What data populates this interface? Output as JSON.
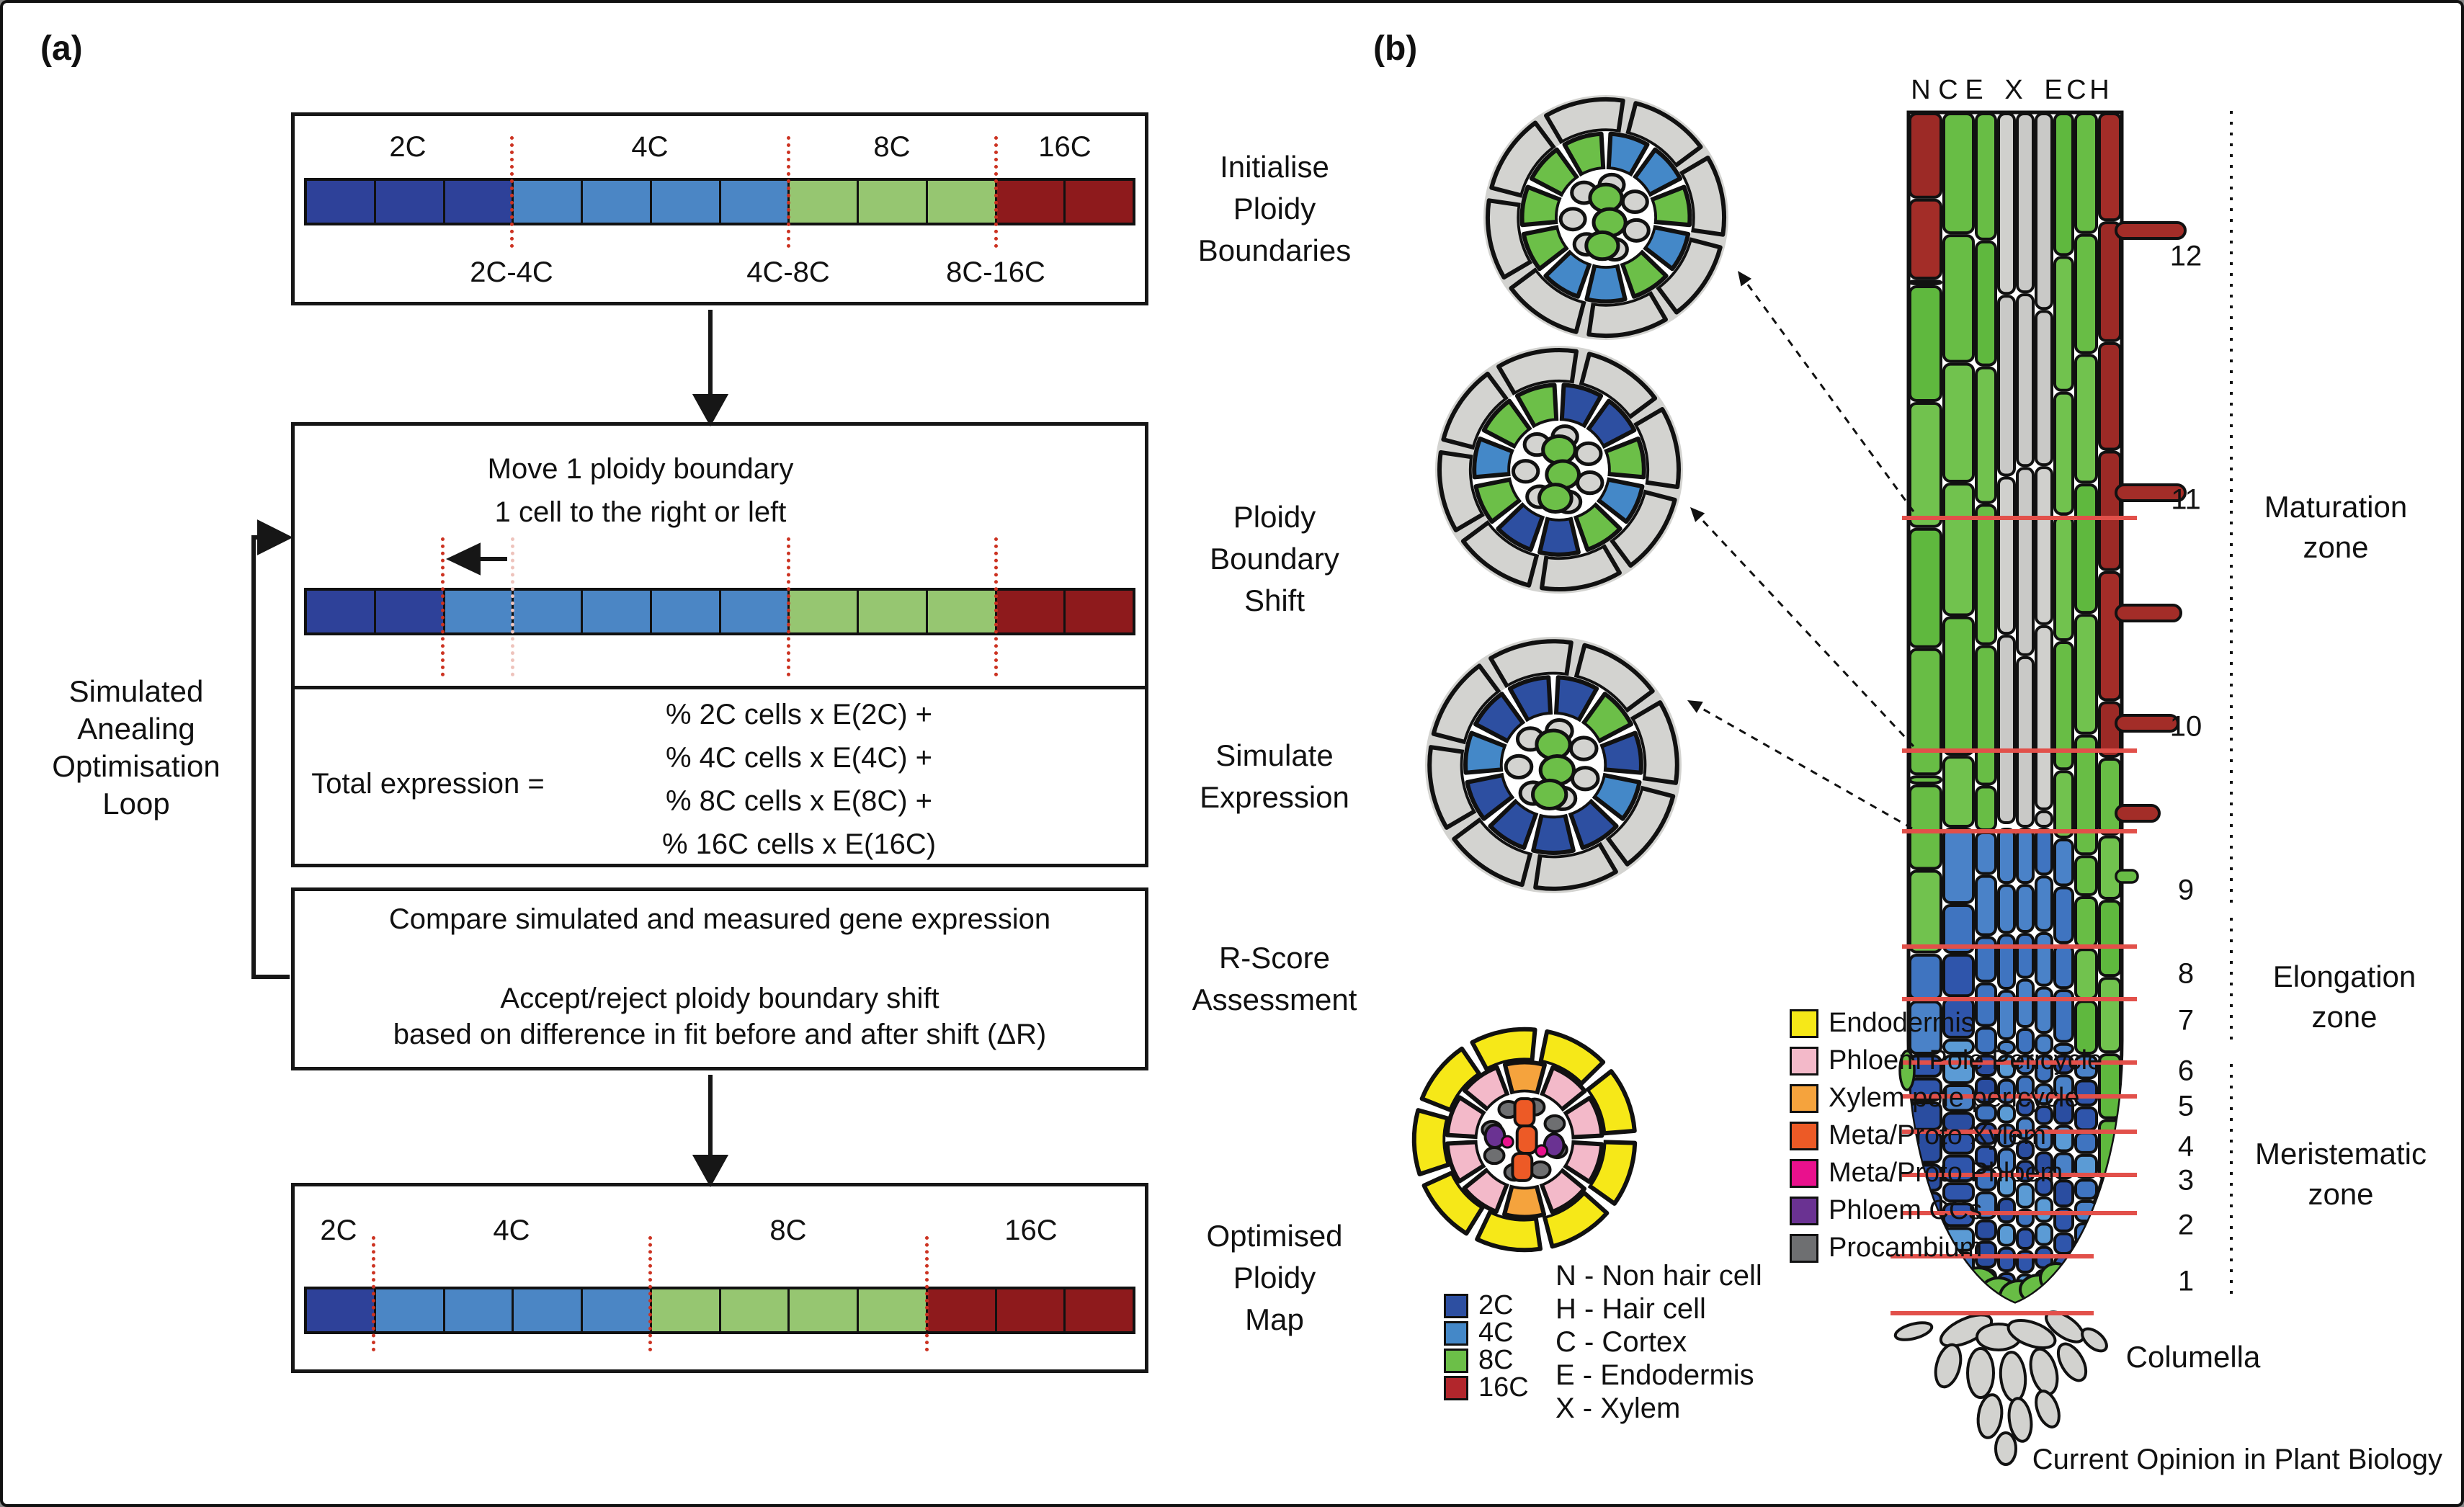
{
  "panel_a": {
    "label": "(a)",
    "colors": {
      "2C": "#2e4199",
      "4C": "#4b86c5",
      "8C": "#96c671",
      "16C": "#8e1a1c",
      "boundary": "#cc3322",
      "boundary_faded": "#eec3bc"
    },
    "boxes": {
      "initialise": {
        "side_label_lines": [
          "Initialise",
          "Ploidy",
          "Boundaries"
        ],
        "segment_labels": [
          "2C",
          "4C",
          "8C",
          "16C"
        ],
        "boundary_labels": [
          "2C-4C",
          "4C-8C",
          "8C-16C"
        ],
        "cells": [
          "2C",
          "2C",
          "2C",
          "4C",
          "4C",
          "4C",
          "4C",
          "8C",
          "8C",
          "8C",
          "16C",
          "16C"
        ]
      },
      "shift": {
        "side_label_lines": [
          "Ploidy",
          "Boundary",
          "Shift"
        ],
        "text_line1": "Move 1 ploidy boundary",
        "text_line2": "1 cell to the right or left",
        "cells": [
          "2C",
          "2C",
          "4C",
          "4C",
          "4C",
          "4C",
          "4C",
          "8C",
          "8C",
          "8C",
          "16C",
          "16C"
        ]
      },
      "simulate": {
        "side_label_lines": [
          "Simulate",
          "Expression"
        ],
        "lhs": "Total expression =",
        "rhs_lines": [
          "% 2C cells x E(2C) +",
          "% 4C cells x E(4C) +",
          "% 8C cells x E(8C) +",
          "% 16C cells x E(16C)"
        ]
      },
      "rscore": {
        "side_label_lines": [
          "R-Score",
          "Assessment"
        ],
        "line1": "Compare simulated and measured gene expression",
        "line2": "Accept/reject ploidy boundary shift",
        "line3": "based on difference in fit before and after shift (ΔR)"
      },
      "optimised": {
        "side_label_lines": [
          "Optimised",
          "Ploidy",
          "Map"
        ],
        "segment_labels": [
          "2C",
          "4C",
          "8C",
          "16C"
        ],
        "cells": [
          "2C",
          "4C",
          "4C",
          "4C",
          "4C",
          "8C",
          "8C",
          "8C",
          "8C",
          "16C",
          "16C",
          "16C"
        ]
      }
    },
    "loop_label_lines": [
      "Simulated",
      "Anealing",
      "Optimisation",
      "Loop"
    ]
  },
  "panel_b": {
    "label": "(b)",
    "top_letters": [
      "N",
      "C",
      "E",
      "X",
      "E",
      "C",
      "H"
    ],
    "section_numbers": [
      "12",
      "11",
      "10",
      "9",
      "8",
      "7",
      "6",
      "5",
      "4",
      "3",
      "2",
      "1"
    ],
    "zone_labels": [
      {
        "line1": "Maturation",
        "line2": "zone"
      },
      {
        "line1": "Elongation",
        "line2": "zone"
      },
      {
        "line1": "Meristematic",
        "line2": "zone"
      }
    ],
    "columella_label": "Columella",
    "tissue_legend": [
      {
        "label": "Endodermis",
        "color": "#f6e818"
      },
      {
        "label": "Phloem Pole Pericycle",
        "color": "#f3b9c9"
      },
      {
        "label": "Xylem pole pericycle",
        "color": "#f5a33d"
      },
      {
        "label": "Meta/Proto Xylem",
        "color": "#ed5a26"
      },
      {
        "label": "Meta/Proto Phloem",
        "color": "#e9118d"
      },
      {
        "label": "Phloem CCs",
        "color": "#6a3292"
      },
      {
        "label": "Procambium",
        "color": "#6e6f71"
      }
    ],
    "ploidy_legend": [
      {
        "label": "2C",
        "color": "#2d4fa1"
      },
      {
        "label": "4C",
        "color": "#4488c8"
      },
      {
        "label": "8C",
        "color": "#6cbf48"
      },
      {
        "label": "16C",
        "color": "#b2262c"
      }
    ],
    "letter_legend": [
      "N - Non hair cell",
      "H - Hair cell",
      "C - Cortex",
      "E - Endodermis",
      "X - Xylem"
    ],
    "root_colors": {
      "green": "#68bd45",
      "red": "#a32d28",
      "gray": "#c9c9c7",
      "blue_dark": "#2a4da0",
      "blue_med": "#3f74c0",
      "blue_light": "#5b9bd5",
      "section_line": "#e2504a",
      "columella_gray": "#d2d2cf"
    }
  },
  "footer": "Current Opinion in Plant Biology"
}
